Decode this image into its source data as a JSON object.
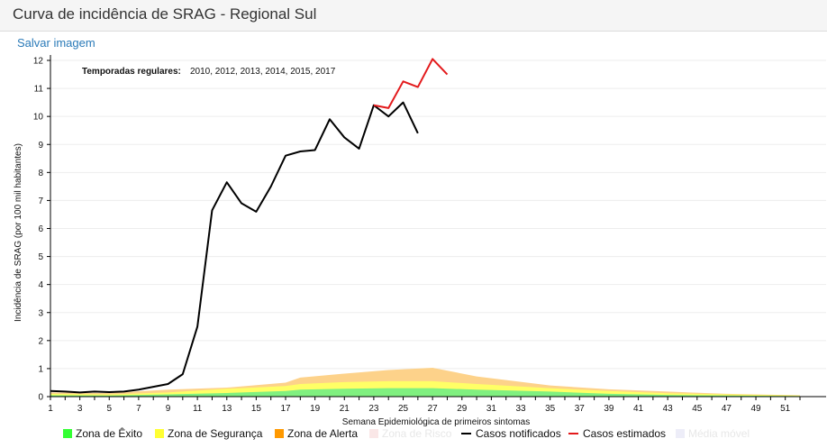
{
  "header": {
    "title": "Curva de incidência de SRAG - Regional Sul"
  },
  "save_link": "Salvar imagem",
  "annotation": {
    "label": "Temporadas regulares:",
    "years": "2010, 2012, 2013, 2014, 2015, 2017"
  },
  "chart_data": {
    "type": "line",
    "xlabel": "Semana Epidemiológica de primeiros sintomas",
    "ylabel": "Incidência de SRAG (por 100 mil habitantes)",
    "xlim": [
      1,
      52
    ],
    "ylim": [
      0,
      12
    ],
    "xticks": [
      1,
      3,
      5,
      7,
      9,
      11,
      13,
      15,
      17,
      19,
      21,
      23,
      25,
      27,
      29,
      31,
      33,
      35,
      37,
      39,
      41,
      43,
      45,
      47,
      49,
      51
    ],
    "yticks": [
      0,
      1,
      2,
      3,
      4,
      5,
      6,
      7,
      8,
      9,
      10,
      11,
      12
    ],
    "zones": {
      "weeks": [
        1,
        5,
        9,
        13,
        17,
        18,
        21,
        24,
        27,
        30,
        35,
        39,
        43,
        47,
        52
      ],
      "exito": [
        0.05,
        0.04,
        0.08,
        0.13,
        0.2,
        0.25,
        0.28,
        0.3,
        0.3,
        0.25,
        0.18,
        0.1,
        0.06,
        0.04,
        0.02
      ],
      "seguranca": [
        0.1,
        0.08,
        0.15,
        0.28,
        0.38,
        0.45,
        0.52,
        0.55,
        0.55,
        0.45,
        0.3,
        0.2,
        0.12,
        0.08,
        0.04
      ],
      "alerta": [
        0.15,
        0.13,
        0.25,
        0.32,
        0.5,
        0.68,
        0.82,
        0.95,
        1.03,
        0.72,
        0.4,
        0.26,
        0.18,
        0.1,
        0.05
      ]
    },
    "series": [
      {
        "name": "Casos notificados",
        "color": "#000000",
        "x": [
          1,
          2,
          3,
          4,
          5,
          6,
          7,
          8,
          9,
          10,
          11,
          12,
          13,
          14,
          15,
          16,
          17,
          18,
          19,
          20,
          21,
          22,
          23,
          24,
          25,
          26
        ],
        "y": [
          0.2,
          0.18,
          0.15,
          0.18,
          0.16,
          0.18,
          0.25,
          0.35,
          0.45,
          0.8,
          2.5,
          6.65,
          7.65,
          6.9,
          6.6,
          7.5,
          8.6,
          8.75,
          8.8,
          9.9,
          9.25,
          8.85,
          10.4,
          10.0,
          10.5,
          9.4
        ]
      },
      {
        "name": "Casos estimados",
        "color": "#e31a1c",
        "x": [
          23,
          24,
          25,
          26,
          27,
          28
        ],
        "y": [
          10.4,
          10.3,
          11.25,
          11.05,
          12.05,
          11.5
        ]
      }
    ],
    "legend": [
      {
        "name": "Zona de Êxito",
        "color": "#33ff33",
        "kind": "box",
        "active": true
      },
      {
        "name": "Zona de Segurança",
        "color": "#ffff33",
        "kind": "box",
        "active": true
      },
      {
        "name": "Zona de Alerta",
        "color": "#ff9900",
        "kind": "box",
        "active": true
      },
      {
        "name": "Zona de Risco",
        "color": "#f5c9c9",
        "kind": "box",
        "active": false
      },
      {
        "name": "Casos notificados",
        "color": "#000000",
        "kind": "line",
        "active": true
      },
      {
        "name": "Casos estimados",
        "color": "#e31a1c",
        "kind": "line",
        "active": true
      },
      {
        "name": "Média móvel",
        "color": "#d6d6f0",
        "kind": "box",
        "active": false
      }
    ]
  }
}
